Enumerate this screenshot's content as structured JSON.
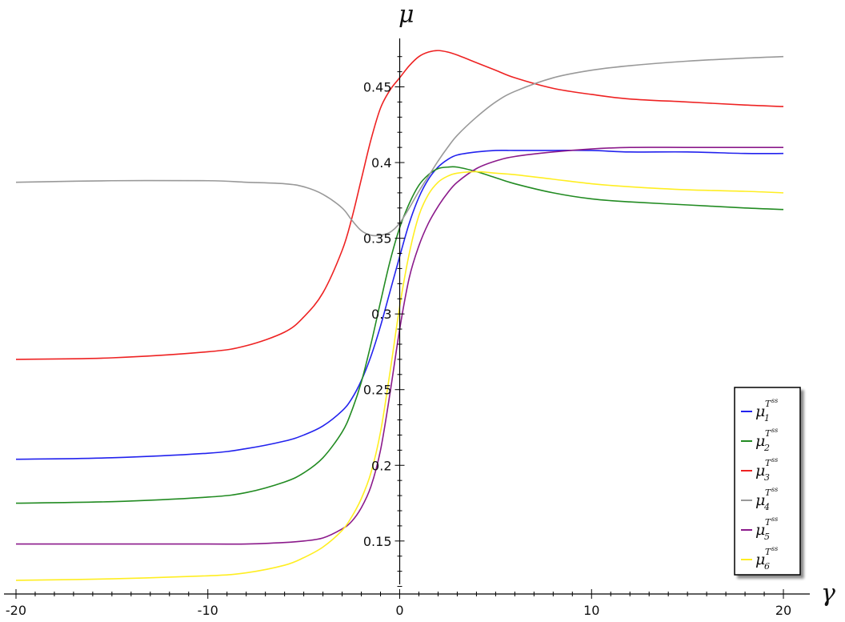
{
  "chart_data": {
    "type": "line",
    "xlabel": "γ",
    "ylabel": "μ",
    "xlim": [
      -20.5,
      21
    ],
    "ylim": [
      0.115,
      0.482
    ],
    "x_ticks": [
      -20,
      -10,
      0,
      10,
      20
    ],
    "x_tick_labels": [
      "-20",
      "-10",
      "0",
      "10",
      "20"
    ],
    "y_ticks": [
      0.15,
      0.2,
      0.25,
      0.3,
      0.35,
      0.4,
      0.45
    ],
    "y_tick_labels": [
      "0.15",
      "0.2",
      "0.25",
      "0.3",
      "0.35",
      "0.4",
      "0.45"
    ],
    "grid": false,
    "legend_position": "bottom-right",
    "x": [
      -20,
      -15,
      -10,
      -8,
      -6,
      -5,
      -4,
      -3,
      -2.5,
      -2,
      -1.5,
      -1,
      -0.5,
      0,
      0.5,
      1,
      1.5,
      2,
      2.5,
      3,
      4,
      5,
      6,
      8,
      10,
      12,
      15,
      18,
      20
    ],
    "series": [
      {
        "name": "1",
        "color": "#2222ee",
        "values": [
          0.204,
          0.205,
          0.208,
          0.211,
          0.216,
          0.22,
          0.226,
          0.236,
          0.244,
          0.256,
          0.272,
          0.292,
          0.315,
          0.338,
          0.36,
          0.377,
          0.389,
          0.397,
          0.402,
          0.405,
          0.407,
          0.408,
          0.408,
          0.408,
          0.408,
          0.407,
          0.407,
          0.406,
          0.406
        ]
      },
      {
        "name": "2",
        "color": "#228b22",
        "values": [
          0.175,
          0.176,
          0.179,
          0.182,
          0.189,
          0.195,
          0.205,
          0.222,
          0.236,
          0.255,
          0.28,
          0.308,
          0.335,
          0.357,
          0.373,
          0.385,
          0.392,
          0.396,
          0.397,
          0.397,
          0.394,
          0.39,
          0.386,
          0.38,
          0.376,
          0.374,
          0.372,
          0.37,
          0.369
        ]
      },
      {
        "name": "3",
        "color": "#ee2222",
        "values": [
          0.27,
          0.271,
          0.275,
          0.279,
          0.288,
          0.298,
          0.314,
          0.342,
          0.363,
          0.389,
          0.415,
          0.436,
          0.448,
          0.456,
          0.464,
          0.47,
          0.473,
          0.474,
          0.473,
          0.471,
          0.466,
          0.461,
          0.456,
          0.449,
          0.445,
          0.442,
          0.44,
          0.438,
          0.437
        ]
      },
      {
        "name": "4",
        "color": "#999999",
        "values": [
          0.387,
          0.388,
          0.388,
          0.387,
          0.386,
          0.384,
          0.379,
          0.37,
          0.362,
          0.355,
          0.352,
          0.352,
          0.354,
          0.36,
          0.37,
          0.381,
          0.391,
          0.401,
          0.41,
          0.418,
          0.43,
          0.44,
          0.447,
          0.456,
          0.461,
          0.464,
          0.467,
          0.469,
          0.47
        ]
      },
      {
        "name": "5",
        "color": "#8b1a8b",
        "values": [
          0.148,
          0.148,
          0.148,
          0.148,
          0.149,
          0.15,
          0.152,
          0.158,
          0.163,
          0.172,
          0.186,
          0.21,
          0.248,
          0.29,
          0.324,
          0.345,
          0.36,
          0.371,
          0.38,
          0.387,
          0.396,
          0.401,
          0.404,
          0.407,
          0.409,
          0.41,
          0.41,
          0.41,
          0.41
        ]
      },
      {
        "name": "6",
        "color": "#ffee22",
        "values": [
          0.124,
          0.125,
          0.127,
          0.129,
          0.134,
          0.139,
          0.146,
          0.157,
          0.166,
          0.178,
          0.195,
          0.222,
          0.262,
          0.305,
          0.34,
          0.365,
          0.379,
          0.387,
          0.391,
          0.393,
          0.394,
          0.393,
          0.392,
          0.389,
          0.386,
          0.384,
          0.382,
          0.381,
          0.38
        ]
      }
    ]
  }
}
